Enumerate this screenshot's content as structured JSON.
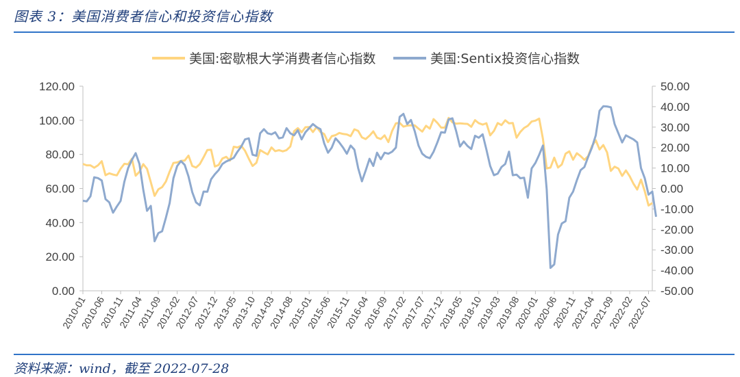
{
  "figure": {
    "title": "图表 3：美国消费者信心和投资信心指数",
    "source": "资料来源：wind，截至 2022-07-28"
  },
  "chart_data": {
    "type": "line",
    "x_tick_labels": [
      "2010-01",
      "2010-06",
      "2010-11",
      "2011-04",
      "2011-09",
      "2012-02",
      "2012-07",
      "2012-12",
      "2013-05",
      "2013-10",
      "2014-03",
      "2014-08",
      "2015-01",
      "2015-06",
      "2015-11",
      "2016-04",
      "2016-09",
      "2017-02",
      "2017-07",
      "2017-12",
      "2018-05",
      "2018-10",
      "2019-03",
      "2019-08",
      "2020-01",
      "2020-06",
      "2020-11",
      "2021-04",
      "2021-09",
      "2022-02",
      "2022-07"
    ],
    "left_axis": {
      "ylim": [
        0,
        120
      ],
      "ticks": [
        "0.00",
        "20.00",
        "40.00",
        "60.00",
        "80.00",
        "100.00",
        "120.00"
      ]
    },
    "right_axis": {
      "ylim": [
        -50,
        50
      ],
      "ticks": [
        "-50.00",
        "-40.00",
        "-30.00",
        "-20.00",
        "-10.00",
        "0.00",
        "10.00",
        "20.00",
        "30.00",
        "40.00",
        "50.00"
      ]
    },
    "series": [
      {
        "name": "美国:密歇根大学消费者信心指数",
        "axis": "left",
        "color": "#FFD580",
        "values": [
          74.4,
          73.6,
          73.6,
          72.2,
          73.6,
          76.0,
          67.8,
          68.9,
          68.2,
          67.7,
          71.6,
          74.5,
          74.2,
          77.5,
          67.5,
          69.8,
          74.3,
          71.5,
          63.7,
          55.7,
          59.5,
          60.8,
          64.1,
          69.9,
          75.0,
          75.3,
          76.2,
          76.4,
          79.3,
          73.2,
          72.3,
          74.3,
          78.3,
          82.6,
          82.7,
          72.9,
          73.8,
          77.6,
          78.6,
          76.4,
          84.5,
          84.1,
          85.1,
          82.1,
          77.5,
          73.2,
          75.1,
          82.5,
          81.2,
          80.0,
          84.1,
          81.9,
          82.5,
          81.8,
          82.5,
          84.6,
          93.6,
          95.4,
          93.0,
          95.9,
          96.1,
          93.1,
          96.1,
          93.1,
          91.9,
          87.2,
          90.7,
          91.3,
          92.6,
          92.0,
          91.7,
          90.7,
          94.7,
          93.8,
          90.0,
          89.0,
          91.0,
          93.5,
          89.8,
          89.0,
          91.2,
          87.2,
          93.8,
          98.2,
          98.5,
          96.3,
          96.9,
          97.1,
          97.0,
          95.1,
          93.4,
          96.8,
          95.1,
          100.7,
          98.5,
          95.7,
          95.7,
          101.4,
          98.8,
          98.0,
          98.2,
          98.0,
          97.9,
          96.2,
          100.1,
          98.3,
          97.5,
          98.3,
          91.2,
          93.8,
          98.4,
          97.2,
          100.0,
          98.2,
          98.4,
          89.8,
          93.2,
          95.5,
          96.8,
          99.3,
          99.8,
          101.0,
          89.1,
          71.8,
          72.3,
          78.1,
          72.3,
          74.1,
          80.4,
          81.8,
          76.9,
          80.7,
          79.0,
          76.8,
          79.0,
          84.9,
          88.3,
          82.9,
          85.5,
          81.2,
          70.3,
          72.8,
          71.7,
          67.4,
          70.6,
          67.2,
          62.8,
          59.4,
          65.2,
          58.4,
          50.0,
          51.5
        ]
      },
      {
        "name": "美国:Sentix投资信心指数",
        "axis": "right",
        "color": "#8EA9CE",
        "values": [
          -6.0,
          -6.3,
          -3.8,
          5.5,
          5.1,
          3.9,
          -5.2,
          -6.8,
          -11.8,
          -8.8,
          -6.1,
          3.3,
          10.0,
          14.0,
          17.3,
          12.0,
          -0.6,
          -10.9,
          -8.5,
          -25.8,
          -21.8,
          -20.9,
          -14.3,
          -7.1,
          5.0,
          11.0,
          13.4,
          11.5,
          5.9,
          -1.8,
          -6.8,
          -8.2,
          -1.5,
          -1.6,
          4.5,
          7.0,
          9.0,
          12.0,
          13.2,
          14.0,
          15.0,
          18.0,
          20.5,
          24.0,
          24.5,
          16.5,
          16.0,
          27.0,
          29.0,
          27.0,
          26.5,
          27.5,
          24.5,
          25.0,
          29.5,
          27.0,
          26.0,
          28.5,
          24.0,
          27.5,
          29.5,
          31.5,
          30.0,
          29.0,
          22.0,
          17.5,
          20.0,
          24.5,
          22.5,
          20.0,
          17.0,
          21.0,
          19.0,
          10.0,
          3.5,
          8.8,
          14.5,
          11.0,
          17.5,
          14.3,
          17.5,
          17.0,
          18.0,
          20.0,
          35.0,
          36.5,
          31.5,
          33.5,
          28.0,
          21.0,
          17.0,
          15.5,
          14.8,
          18.0,
          22.5,
          27.5,
          27.3,
          33.8,
          34.3,
          28.0,
          20.5,
          23.0,
          20.8,
          19.3,
          25.8,
          24.8,
          26.5,
          19.0,
          11.0,
          6.5,
          7.3,
          10.5,
          12.0,
          18.0,
          6.5,
          6.8,
          5.0,
          5.3,
          -4.5,
          9.8,
          12.5,
          16.5,
          21.0,
          -0.5,
          -38.8,
          -37.1,
          -22.5,
          -17.1,
          -16.0,
          -4.5,
          -1.5,
          4.0,
          9.0,
          10.5,
          15.5,
          20.0,
          26.0,
          38.0,
          40.2,
          40.1,
          39.7,
          31.5,
          27.0,
          22.5,
          26.0,
          25.0,
          24.0,
          22.5,
          10.0,
          5.0,
          -3.0,
          -1.5,
          -13.8
        ]
      }
    ]
  }
}
